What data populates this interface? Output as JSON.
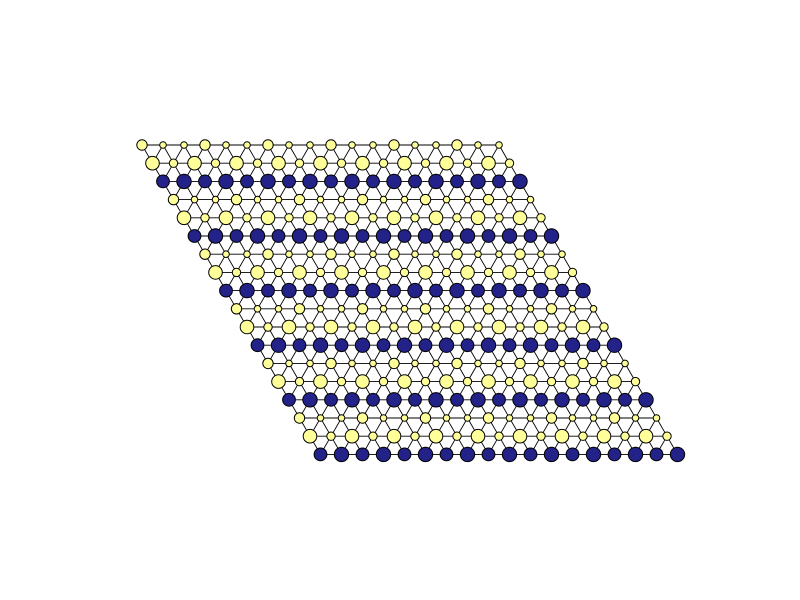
{
  "diagram": {
    "type": "lattice-graph",
    "lattice": {
      "rows": 18,
      "columns": 18,
      "shape": "parallelogram",
      "edges": [
        "horizontal",
        "vertical",
        "diagonal"
      ]
    },
    "row_pattern": [
      [
        "small",
        "large",
        "dark"
      ],
      [
        "small",
        "large",
        "dark"
      ],
      [
        "small",
        "large",
        "dark"
      ],
      [
        "small",
        "large",
        "dark"
      ],
      [
        "small",
        "large",
        "dark"
      ],
      [
        "small",
        "large",
        "dark"
      ]
    ],
    "node_styles": {
      "small": {
        "fill": "#ffff99",
        "size": "small"
      },
      "large": {
        "fill": "#ffff99",
        "size": "large"
      },
      "dark": {
        "fill": "#222288",
        "size": "large"
      }
    },
    "colors": {
      "node_outline": "#000000",
      "edge": "#000000",
      "background": "#ffffff"
    }
  }
}
